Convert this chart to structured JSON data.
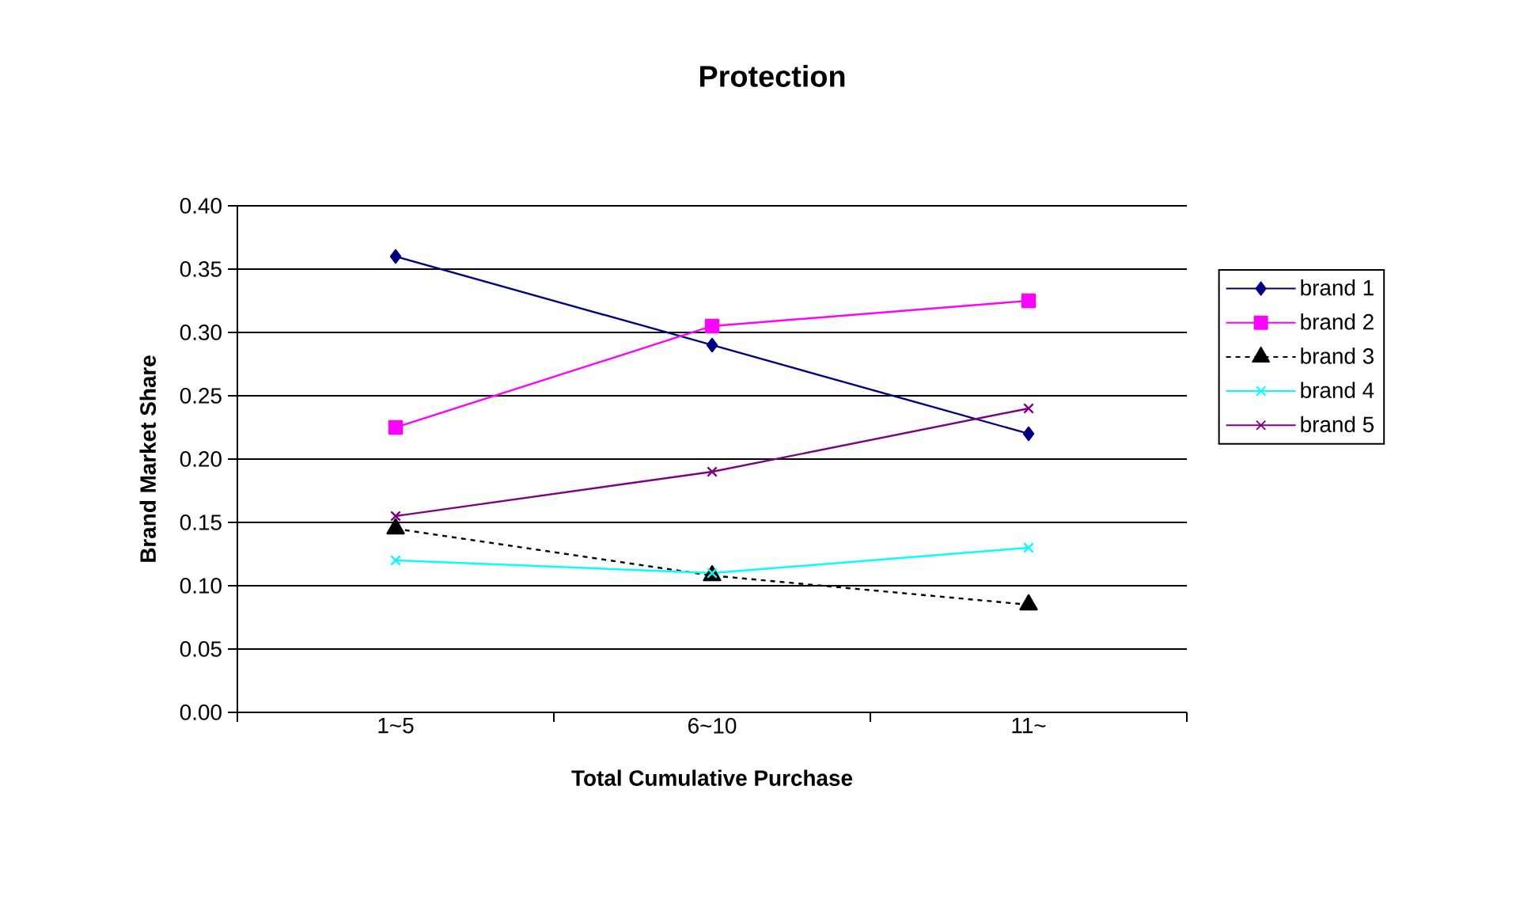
{
  "chart_data": {
    "type": "line",
    "title": "Protection",
    "xlabel": "Total Cumulative Purchase",
    "ylabel": "Brand Market Share",
    "categories": [
      "1~5",
      "6~10",
      "11~"
    ],
    "series": [
      {
        "name": "brand 1",
        "color": "#000080",
        "marker": "diamond",
        "line_style": "solid",
        "values": [
          0.36,
          0.29,
          0.22
        ]
      },
      {
        "name": "brand 2",
        "color": "#ff00ff",
        "marker": "square",
        "line_style": "solid",
        "values": [
          0.225,
          0.305,
          0.325
        ]
      },
      {
        "name": "brand 3",
        "color": "#000000",
        "marker": "triangle",
        "line_style": "dashed",
        "values": [
          0.145,
          0.108,
          0.085
        ]
      },
      {
        "name": "brand 4",
        "color": "#00ffff",
        "marker": "cross",
        "line_style": "solid",
        "values": [
          0.12,
          0.11,
          0.13
        ]
      },
      {
        "name": "brand 5",
        "color": "#800080",
        "marker": "cross",
        "line_style": "solid",
        "values": [
          0.155,
          0.19,
          0.24
        ]
      }
    ],
    "ylim": [
      0,
      0.4
    ],
    "yticks": [
      {
        "value": 0,
        "label": "0.00"
      },
      {
        "value": 0.05,
        "label": "0.05"
      },
      {
        "value": 0.1,
        "label": "0.10"
      },
      {
        "value": 0.15,
        "label": "0.15"
      },
      {
        "value": 0.2,
        "label": "0.20"
      },
      {
        "value": 0.25,
        "label": "0.25"
      },
      {
        "value": 0.3,
        "label": "0.30"
      },
      {
        "value": 0.35,
        "label": "0.35"
      },
      {
        "value": 0.4,
        "label": "0.40"
      }
    ],
    "grid": "y",
    "legend": "right"
  }
}
